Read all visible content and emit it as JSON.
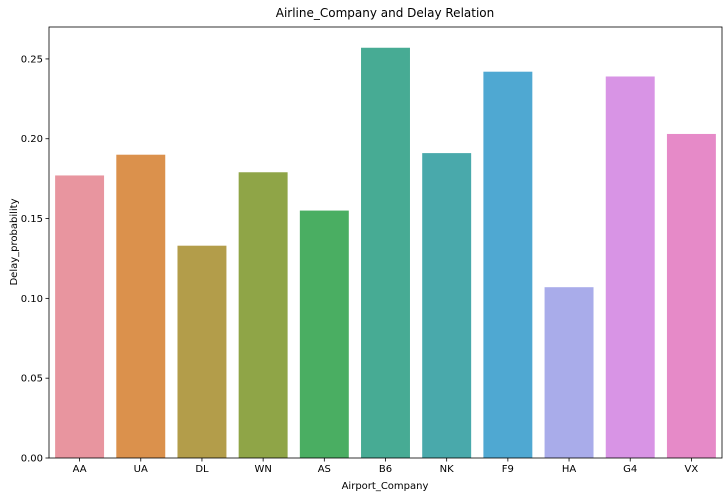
{
  "chart_data": {
    "type": "bar",
    "title": "Airline_Company and Delay Relation",
    "xlabel": "Airport_Company",
    "ylabel": "Delay_probability",
    "categories": [
      "AA",
      "UA",
      "DL",
      "WN",
      "AS",
      "B6",
      "NK",
      "F9",
      "HA",
      "G4",
      "VX"
    ],
    "values": [
      0.177,
      0.19,
      0.133,
      0.179,
      0.155,
      0.257,
      0.191,
      0.242,
      0.107,
      0.239,
      0.203
    ],
    "colors": [
      "#e8959f",
      "#db914c",
      "#b39d4a",
      "#8fa547",
      "#4aae62",
      "#47ab94",
      "#49a9ab",
      "#4fa8d2",
      "#a9acea",
      "#d894e5",
      "#e68ac8"
    ],
    "ylim": [
      0,
      0.27
    ],
    "yticks": [
      "0.00",
      "0.05",
      "0.10",
      "0.15",
      "0.20",
      "0.25"
    ],
    "ytick_values": [
      0,
      0.05,
      0.1,
      0.15,
      0.2,
      0.25
    ],
    "grid": false,
    "legend": "none"
  }
}
